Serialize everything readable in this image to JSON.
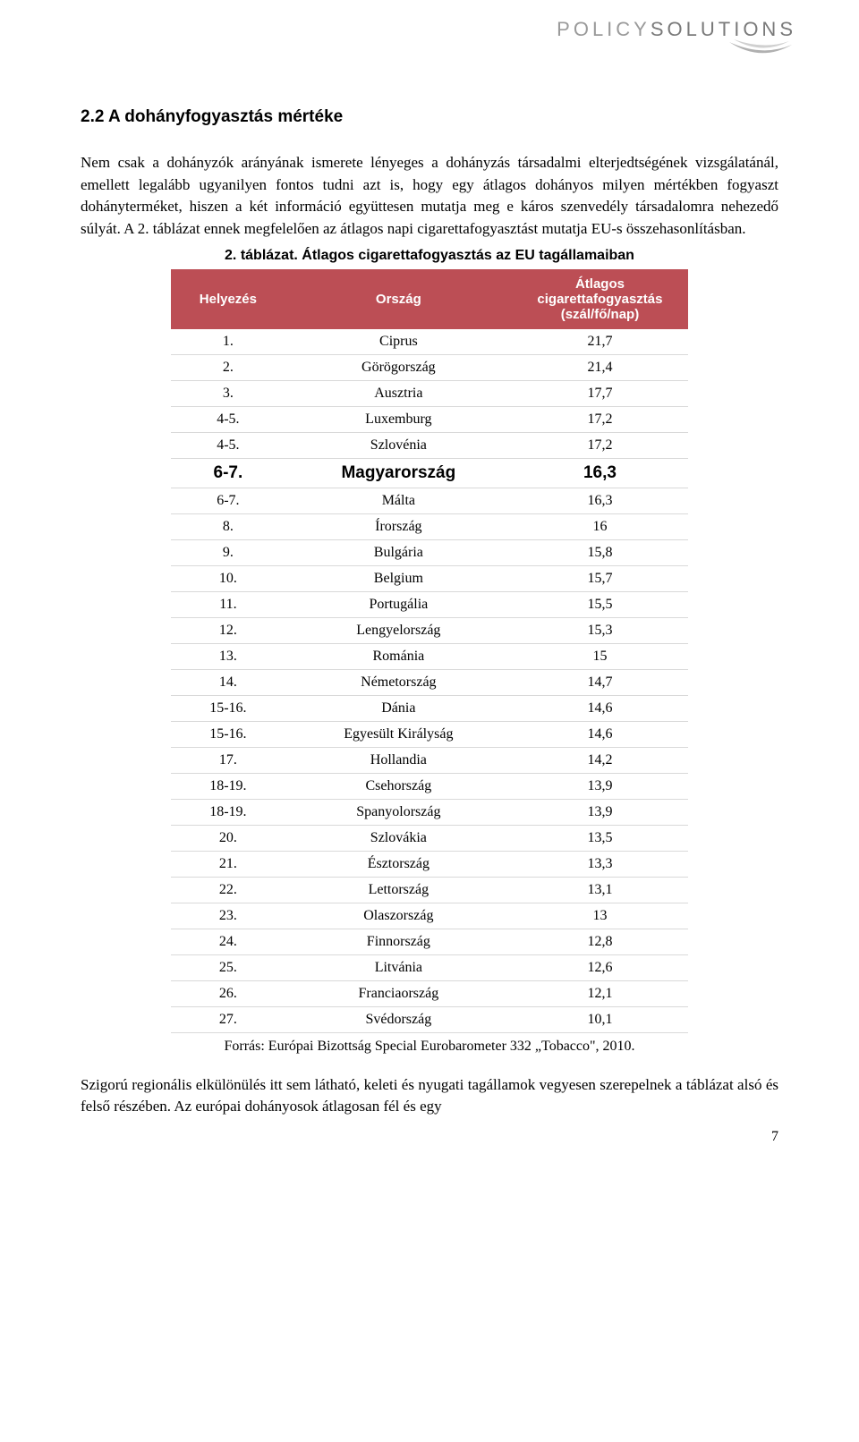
{
  "logo": {
    "part1": "POLICY",
    "part2": "SOLUTIONS"
  },
  "heading": "2.2 A dohányfogyasztás mértéke",
  "para1": "Nem csak a dohányzók arányának ismerete lényeges a dohányzás társadalmi elterjedtségének vizsgálatánál, emellett legalább ugyanilyen fontos tudni azt is, hogy egy átlagos dohányos milyen mértékben fogyaszt dohányterméket, hiszen a két információ együttesen mutatja meg e káros szenvedély társadalomra nehezedő súlyát. A 2. táblázat ennek megfelelően az átlagos napi cigarettafogyasztást mutatja EU-s összehasonlításban.",
  "table": {
    "caption": "2.  táblázat. Átlagos cigarettafogyasztás az EU tagállamaiban",
    "header_bg": "#bc4e55",
    "header_color": "#ffffff",
    "border_color": "#d9d9d9",
    "columns": [
      "Helyezés",
      "Ország",
      "Átlagos cigarettafogyasztás (szál/fő/nap)"
    ],
    "highlight_index": 5,
    "rows": [
      {
        "rank": "1.",
        "country": "Ciprus",
        "value": "21,7"
      },
      {
        "rank": "2.",
        "country": "Görögország",
        "value": "21,4"
      },
      {
        "rank": "3.",
        "country": "Ausztria",
        "value": "17,7"
      },
      {
        "rank": "4-5.",
        "country": "Luxemburg",
        "value": "17,2"
      },
      {
        "rank": "4-5.",
        "country": "Szlovénia",
        "value": "17,2"
      },
      {
        "rank": "6-7.",
        "country": "Magyarország",
        "value": "16,3"
      },
      {
        "rank": "6-7.",
        "country": "Málta",
        "value": "16,3"
      },
      {
        "rank": "8.",
        "country": "Írország",
        "value": "16"
      },
      {
        "rank": "9.",
        "country": "Bulgária",
        "value": "15,8"
      },
      {
        "rank": "10.",
        "country": "Belgium",
        "value": "15,7"
      },
      {
        "rank": "11.",
        "country": "Portugália",
        "value": "15,5"
      },
      {
        "rank": "12.",
        "country": "Lengyelország",
        "value": "15,3"
      },
      {
        "rank": "13.",
        "country": "Románia",
        "value": "15"
      },
      {
        "rank": "14.",
        "country": "Németország",
        "value": "14,7"
      },
      {
        "rank": "15-16.",
        "country": "Dánia",
        "value": "14,6"
      },
      {
        "rank": "15-16.",
        "country": "Egyesült Királyság",
        "value": "14,6"
      },
      {
        "rank": "17.",
        "country": "Hollandia",
        "value": "14,2"
      },
      {
        "rank": "18-19.",
        "country": "Csehország",
        "value": "13,9"
      },
      {
        "rank": "18-19.",
        "country": "Spanyolország",
        "value": "13,9"
      },
      {
        "rank": "20.",
        "country": "Szlovákia",
        "value": "13,5"
      },
      {
        "rank": "21.",
        "country": "Észtország",
        "value": "13,3"
      },
      {
        "rank": "22.",
        "country": "Lettország",
        "value": "13,1"
      },
      {
        "rank": "23.",
        "country": "Olaszország",
        "value": "13"
      },
      {
        "rank": "24.",
        "country": "Finnország",
        "value": "12,8"
      },
      {
        "rank": "25.",
        "country": "Litvánia",
        "value": "12,6"
      },
      {
        "rank": "26.",
        "country": "Franciaország",
        "value": "12,1"
      },
      {
        "rank": "27.",
        "country": "Svédország",
        "value": "10,1"
      }
    ]
  },
  "source": "Forrás: Európai Bizottság Special Eurobarometer 332 „Tobacco\", 2010.",
  "para2": "Szigorú regionális elkülönülés itt sem látható, keleti és nyugati tagállamok vegyesen szerepelnek a táblázat alsó és felső részében. Az európai dohányosok átlagosan fél és egy",
  "page_number": "7"
}
